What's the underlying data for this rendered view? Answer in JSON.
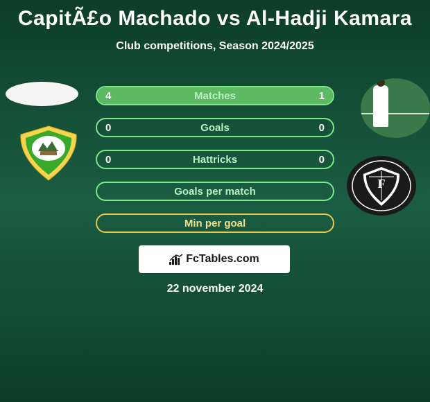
{
  "title": "CapitÃ£o Machado vs Al-Hadji Kamara",
  "subtitle": "Club competitions, Season 2024/2025",
  "date": "22 november 2024",
  "branding_text": "FcTables.com",
  "colors": {
    "green_border": "#7de88a",
    "green_fill": "#5dba62",
    "yellow_border": "#e8c84a",
    "yellow_fill": "#d8b83a",
    "label_text": "#b8f0c0",
    "label_text_yellow": "#f0e090",
    "val_text": "#ffffff"
  },
  "stats": [
    {
      "label": "Matches",
      "left_val": "4",
      "right_val": "1",
      "left_pct": 80,
      "right_pct": 20,
      "style": "green",
      "filled": true
    },
    {
      "label": "Goals",
      "left_val": "0",
      "right_val": "0",
      "left_pct": 0,
      "right_pct": 0,
      "style": "green",
      "filled": false
    },
    {
      "label": "Hattricks",
      "left_val": "0",
      "right_val": "0",
      "left_pct": 0,
      "right_pct": 0,
      "style": "green",
      "filled": false
    },
    {
      "label": "Goals per match",
      "left_val": "",
      "right_val": "",
      "left_pct": 0,
      "right_pct": 0,
      "style": "green",
      "filled": false,
      "hide_vals": true
    },
    {
      "label": "Min per goal",
      "left_val": "",
      "right_val": "",
      "left_pct": 0,
      "right_pct": 0,
      "style": "yellow",
      "filled": false,
      "hide_vals": true
    }
  ],
  "left_club_colors": {
    "outer": "#f5d450",
    "inner": "#3aa82a",
    "center": "#ffffff"
  },
  "right_club_colors": {
    "outer": "#1a1a1a",
    "inner": "#ffffff"
  }
}
